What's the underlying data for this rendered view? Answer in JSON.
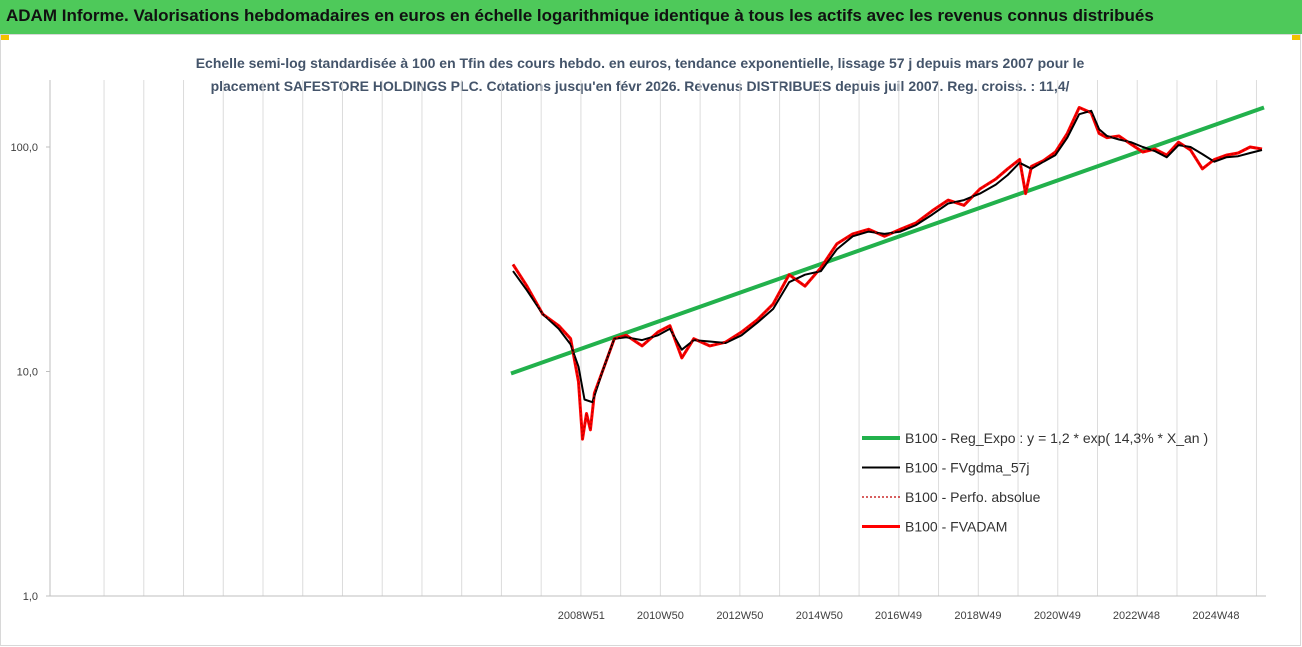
{
  "header": {
    "title": "ADAM Informe. Valorisations hebdomadaires en euros en échelle logarithmique identique à tous les actifs avec les revenus connus distribués"
  },
  "chart_data": {
    "type": "line",
    "y_scale": "log",
    "ylim": [
      1,
      200
    ],
    "subtitle_line1": "Echelle semi-log standardisée à 100 en Tfin des cours hebdo. en euros, tendance exponentielle, lissage 57 j depuis mars 2007 pour le",
    "subtitle_line2": "placement SAFESTORE HOLDINGS PLC. Cotations jusqu'en févr 2026. Revenus DISTRIBUES depuis juil 2007. Reg. croiss. : 11,4/",
    "y_ticks": [
      {
        "value": 1,
        "label": "1,0"
      },
      {
        "value": 10,
        "label": "10,0"
      },
      {
        "value": 100,
        "label": "100,0"
      }
    ],
    "x_tick_labels": [
      "2008W51",
      "2010W50",
      "2012W50",
      "2014W50",
      "2016W49",
      "2018W49",
      "2020W49",
      "2022W48",
      "2024W48"
    ],
    "x_tick_positions": [
      2008.97,
      2010.96,
      2012.96,
      2014.96,
      2016.95,
      2018.95,
      2020.95,
      2022.94,
      2024.94
    ],
    "x_range": [
      1995.6,
      2026.2
    ],
    "legend_position": "bottom-right",
    "series": [
      {
        "name": "B100 - Reg_Expo : y = 1,2 * exp( 14,3% *  X_an )",
        "color": "#22b14c",
        "x": [
          2007.2,
          2026.15
        ],
        "y": [
          9.8,
          150
        ]
      },
      {
        "name": "B100 - FVgdma_57j",
        "color": "#000000",
        "x": [
          2007.25,
          2007.6,
          2008.0,
          2008.4,
          2008.7,
          2008.9,
          2009.05,
          2009.25,
          2009.5,
          2009.8,
          2010.1,
          2010.5,
          2010.9,
          2011.2,
          2011.5,
          2011.8,
          2012.2,
          2012.6,
          2013.0,
          2013.4,
          2013.8,
          2014.2,
          2014.6,
          2015.0,
          2015.4,
          2015.8,
          2016.2,
          2016.6,
          2017.0,
          2017.4,
          2017.8,
          2018.2,
          2018.6,
          2019.0,
          2019.4,
          2019.7,
          2020.0,
          2020.3,
          2020.6,
          2020.9,
          2021.2,
          2021.5,
          2021.8,
          2022.0,
          2022.2,
          2022.5,
          2022.8,
          2023.1,
          2023.4,
          2023.7,
          2024.0,
          2024.3,
          2024.6,
          2024.9,
          2025.2,
          2025.5,
          2025.8,
          2026.1
        ],
        "y": [
          28,
          23,
          18,
          15.5,
          13.2,
          10.5,
          7.5,
          7.3,
          10,
          14,
          14.2,
          13.8,
          14.5,
          15.5,
          12.5,
          13.8,
          13.6,
          13.4,
          14.5,
          16.5,
          19,
          25,
          27,
          28,
          35,
          40,
          42,
          41,
          42,
          45,
          50,
          56,
          58,
          62,
          68,
          75,
          85,
          80,
          86,
          92,
          110,
          140,
          145,
          120,
          112,
          108,
          105,
          100,
          96,
          90,
          102,
          100,
          93,
          86,
          90,
          91,
          94,
          97
        ]
      },
      {
        "name": "B100 - Perfo. absolue",
        "color": "#c00000",
        "x": [
          2007.25,
          2007.6,
          2008.0,
          2008.4,
          2008.7,
          2008.9,
          2009.0,
          2009.1,
          2009.2,
          2009.3,
          2009.5,
          2009.8,
          2010.1,
          2010.5,
          2010.9,
          2011.2,
          2011.5,
          2011.8,
          2012.2,
          2012.6,
          2013.0,
          2013.4,
          2013.8,
          2014.2,
          2014.6,
          2015.0,
          2015.4,
          2015.8,
          2016.2,
          2016.6,
          2017.0,
          2017.4,
          2017.8,
          2018.2,
          2018.6,
          2019.0,
          2019.4,
          2019.7,
          2020.0,
          2020.15,
          2020.3,
          2020.6,
          2020.9,
          2021.2,
          2021.5,
          2021.8,
          2022.0,
          2022.2,
          2022.5,
          2022.8,
          2023.1,
          2023.4,
          2023.7,
          2024.0,
          2024.3,
          2024.6,
          2024.9,
          2025.2,
          2025.5,
          2025.8,
          2026.1
        ],
        "y": [
          30,
          24,
          18,
          16,
          14,
          9,
          5.0,
          6.5,
          5.5,
          8,
          10,
          14,
          14.5,
          13,
          15,
          16,
          11.5,
          14,
          13,
          13.5,
          15,
          17,
          20,
          27,
          24,
          29,
          37,
          41,
          43,
          40,
          43,
          46,
          52,
          58,
          55,
          65,
          72,
          80,
          88,
          62,
          82,
          87,
          95,
          115,
          150,
          142,
          115,
          110,
          112,
          103,
          95,
          98,
          92,
          105,
          97,
          80,
          88,
          92,
          94,
          100,
          98
        ]
      },
      {
        "name": "B100 - FVADAM",
        "color": "#ff0000",
        "x": [
          2007.25,
          2007.6,
          2008.0,
          2008.4,
          2008.7,
          2008.9,
          2009.0,
          2009.1,
          2009.2,
          2009.3,
          2009.5,
          2009.8,
          2010.1,
          2010.5,
          2010.9,
          2011.2,
          2011.5,
          2011.8,
          2012.2,
          2012.6,
          2013.0,
          2013.4,
          2013.8,
          2014.2,
          2014.6,
          2015.0,
          2015.4,
          2015.8,
          2016.2,
          2016.6,
          2017.0,
          2017.4,
          2017.8,
          2018.2,
          2018.6,
          2019.0,
          2019.4,
          2019.7,
          2020.0,
          2020.15,
          2020.3,
          2020.6,
          2020.9,
          2021.2,
          2021.5,
          2021.8,
          2022.0,
          2022.2,
          2022.5,
          2022.8,
          2023.1,
          2023.4,
          2023.7,
          2024.0,
          2024.3,
          2024.6,
          2024.9,
          2025.2,
          2025.5,
          2025.8,
          2026.1
        ],
        "y": [
          30,
          24,
          18,
          16,
          14,
          9,
          5.0,
          6.5,
          5.5,
          8,
          10,
          14,
          14.5,
          13,
          15,
          16,
          11.5,
          14,
          13,
          13.5,
          15,
          17,
          20,
          27,
          24,
          29,
          37,
          41,
          43,
          40,
          43,
          46,
          52,
          58,
          55,
          65,
          72,
          80,
          88,
          62,
          82,
          87,
          95,
          115,
          150,
          142,
          115,
          110,
          112,
          103,
          95,
          98,
          92,
          105,
          97,
          80,
          88,
          92,
          94,
          100,
          98
        ]
      }
    ]
  }
}
